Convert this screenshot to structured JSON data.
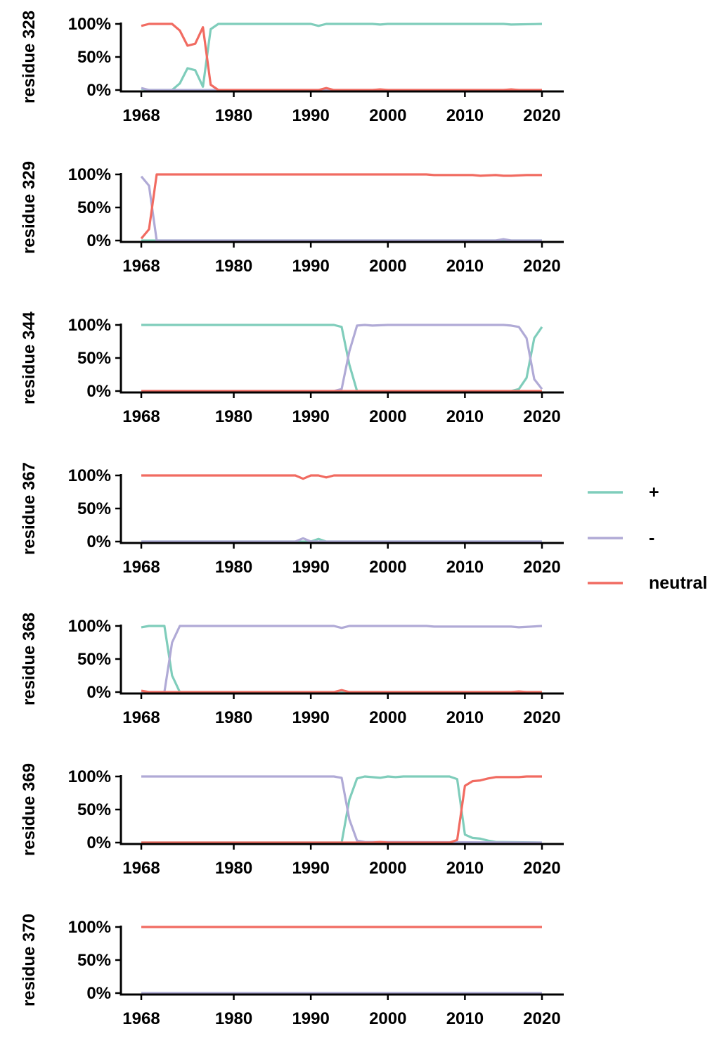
{
  "chart_data": {
    "type": "line",
    "xlim": [
      1965.5,
      2022.5
    ],
    "ylim": [
      0,
      100
    ],
    "x_ticks": [
      1968,
      1980,
      1990,
      2000,
      2010,
      2020
    ],
    "y_ticks": [
      "0%",
      "50%",
      "100%"
    ],
    "grid": false,
    "legend_position": "right",
    "legend": [
      {
        "label": "+",
        "color": "#7fcdbb"
      },
      {
        "label": "-",
        "color": "#b0aad6"
      },
      {
        "label": "neutral",
        "color": "#f16b61"
      }
    ],
    "panels": [
      {
        "ylabel": "residue 328",
        "series": [
          {
            "name": "+",
            "color": "#7fcdbb",
            "points": [
              [
                1968,
                2
              ],
              [
                1969,
                0
              ],
              [
                1970,
                0
              ],
              [
                1971,
                0
              ],
              [
                1972,
                0
              ],
              [
                1973,
                10
              ],
              [
                1974,
                33
              ],
              [
                1975,
                30
              ],
              [
                1976,
                5
              ],
              [
                1977,
                92
              ],
              [
                1978,
                100
              ],
              [
                1980,
                100
              ],
              [
                1990,
                100
              ],
              [
                1991,
                97
              ],
              [
                1992,
                100
              ],
              [
                1998,
                100
              ],
              [
                1999,
                99
              ],
              [
                2000,
                100
              ],
              [
                2015,
                100
              ],
              [
                2016,
                99
              ],
              [
                2020,
                100
              ]
            ]
          },
          {
            "name": "-",
            "color": "#b0aad6",
            "points": [
              [
                1968,
                3
              ],
              [
                1969,
                0
              ],
              [
                1976,
                0
              ],
              [
                1977,
                0
              ],
              [
                2020,
                0
              ]
            ]
          },
          {
            "name": "neutral",
            "color": "#f16b61",
            "points": [
              [
                1968,
                97
              ],
              [
                1969,
                100
              ],
              [
                1972,
                100
              ],
              [
                1973,
                90
              ],
              [
                1974,
                67
              ],
              [
                1975,
                70
              ],
              [
                1976,
                95
              ],
              [
                1977,
                8
              ],
              [
                1978,
                0
              ],
              [
                1991,
                0
              ],
              [
                1992,
                3
              ],
              [
                1993,
                0
              ],
              [
                1998,
                0
              ],
              [
                1999,
                1
              ],
              [
                2000,
                0
              ],
              [
                2015,
                0
              ],
              [
                2016,
                1
              ],
              [
                2017,
                0
              ],
              [
                2020,
                0
              ]
            ]
          }
        ]
      },
      {
        "ylabel": "residue 329",
        "series": [
          {
            "name": "+",
            "color": "#7fcdbb",
            "points": [
              [
                1968,
                0
              ],
              [
                1970,
                0
              ],
              [
                2020,
                0
              ]
            ]
          },
          {
            "name": "-",
            "color": "#b0aad6",
            "points": [
              [
                1968,
                97
              ],
              [
                1969,
                83
              ],
              [
                1970,
                0
              ],
              [
                2014,
                0
              ],
              [
                2015,
                2
              ],
              [
                2016,
                0
              ],
              [
                2020,
                0
              ]
            ]
          },
          {
            "name": "neutral",
            "color": "#f16b61",
            "points": [
              [
                1968,
                3
              ],
              [
                1969,
                17
              ],
              [
                1970,
                100
              ],
              [
                2005,
                100
              ],
              [
                2006,
                99
              ],
              [
                2011,
                99
              ],
              [
                2012,
                98
              ],
              [
                2014,
                99
              ],
              [
                2015,
                98
              ],
              [
                2016,
                98
              ],
              [
                2018,
                99
              ],
              [
                2020,
                99
              ]
            ]
          }
        ]
      },
      {
        "ylabel": "residue 344",
        "series": [
          {
            "name": "+",
            "color": "#7fcdbb",
            "points": [
              [
                1968,
                100
              ],
              [
                1993,
                100
              ],
              [
                1994,
                97
              ],
              [
                1995,
                40
              ],
              [
                1996,
                0
              ],
              [
                2016,
                0
              ],
              [
                2017,
                3
              ],
              [
                2018,
                20
              ],
              [
                2019,
                80
              ],
              [
                2020,
                97
              ]
            ]
          },
          {
            "name": "-",
            "color": "#b0aad6",
            "points": [
              [
                1968,
                0
              ],
              [
                1993,
                0
              ],
              [
                1994,
                3
              ],
              [
                1995,
                60
              ],
              [
                1996,
                99
              ],
              [
                1997,
                100
              ],
              [
                1998,
                99
              ],
              [
                2000,
                100
              ],
              [
                2015,
                100
              ],
              [
                2016,
                99
              ],
              [
                2017,
                97
              ],
              [
                2018,
                80
              ],
              [
                2019,
                18
              ],
              [
                2020,
                3
              ]
            ]
          },
          {
            "name": "neutral",
            "color": "#f16b61",
            "points": [
              [
                1968,
                0
              ],
              [
                2020,
                0
              ]
            ]
          }
        ]
      },
      {
        "ylabel": "residue 367",
        "series": [
          {
            "name": "+",
            "color": "#7fcdbb",
            "points": [
              [
                1968,
                0
              ],
              [
                1990,
                0
              ],
              [
                1991,
                4
              ],
              [
                1992,
                0
              ],
              [
                2020,
                0
              ]
            ]
          },
          {
            "name": "-",
            "color": "#b0aad6",
            "points": [
              [
                1968,
                0
              ],
              [
                1988,
                0
              ],
              [
                1989,
                5
              ],
              [
                1990,
                0
              ],
              [
                2020,
                0
              ]
            ]
          },
          {
            "name": "neutral",
            "color": "#f16b61",
            "points": [
              [
                1968,
                100
              ],
              [
                1988,
                100
              ],
              [
                1989,
                95
              ],
              [
                1990,
                100
              ],
              [
                1991,
                100
              ],
              [
                1992,
                97
              ],
              [
                1993,
                100
              ],
              [
                2020,
                100
              ]
            ]
          }
        ]
      },
      {
        "ylabel": "residue 368",
        "series": [
          {
            "name": "+",
            "color": "#7fcdbb",
            "points": [
              [
                1968,
                98
              ],
              [
                1969,
                100
              ],
              [
                1971,
                100
              ],
              [
                1972,
                25
              ],
              [
                1973,
                0
              ],
              [
                2020,
                0
              ]
            ]
          },
          {
            "name": "-",
            "color": "#b0aad6",
            "points": [
              [
                1968,
                0
              ],
              [
                1971,
                0
              ],
              [
                1972,
                75
              ],
              [
                1973,
                100
              ],
              [
                1993,
                100
              ],
              [
                1994,
                97
              ],
              [
                1995,
                100
              ],
              [
                2005,
                100
              ],
              [
                2006,
                99
              ],
              [
                2016,
                99
              ],
              [
                2017,
                98
              ],
              [
                2020,
                100
              ]
            ]
          },
          {
            "name": "neutral",
            "color": "#f16b61",
            "points": [
              [
                1968,
                2
              ],
              [
                1969,
                0
              ],
              [
                1993,
                0
              ],
              [
                1994,
                3
              ],
              [
                1995,
                0
              ],
              [
                2016,
                0
              ],
              [
                2017,
                1
              ],
              [
                2018,
                0
              ],
              [
                2020,
                0
              ]
            ]
          }
        ]
      },
      {
        "ylabel": "residue 369",
        "series": [
          {
            "name": "+",
            "color": "#7fcdbb",
            "points": [
              [
                1968,
                0
              ],
              [
                1994,
                0
              ],
              [
                1995,
                65
              ],
              [
                1996,
                97
              ],
              [
                1997,
                100
              ],
              [
                1999,
                98
              ],
              [
                2000,
                100
              ],
              [
                2001,
                99
              ],
              [
                2002,
                100
              ],
              [
                2008,
                100
              ],
              [
                2009,
                96
              ],
              [
                2010,
                12
              ],
              [
                2011,
                7
              ],
              [
                2012,
                6
              ],
              [
                2013,
                3
              ],
              [
                2014,
                1
              ],
              [
                2020,
                0
              ]
            ]
          },
          {
            "name": "-",
            "color": "#b0aad6",
            "points": [
              [
                1968,
                100
              ],
              [
                1993,
                100
              ],
              [
                1994,
                98
              ],
              [
                1995,
                35
              ],
              [
                1996,
                3
              ],
              [
                1997,
                1
              ],
              [
                2020,
                0
              ]
            ]
          },
          {
            "name": "neutral",
            "color": "#f16b61",
            "points": [
              [
                1968,
                0
              ],
              [
                1998,
                0
              ],
              [
                1999,
                1
              ],
              [
                2000,
                0
              ],
              [
                2008,
                0
              ],
              [
                2009,
                4
              ],
              [
                2010,
                86
              ],
              [
                2011,
                93
              ],
              [
                2012,
                94
              ],
              [
                2013,
                97
              ],
              [
                2014,
                99
              ],
              [
                2017,
                99
              ],
              [
                2018,
                100
              ],
              [
                2020,
                100
              ]
            ]
          }
        ]
      },
      {
        "ylabel": "residue 370",
        "series": [
          {
            "name": "+",
            "color": "#7fcdbb",
            "points": [
              [
                1968,
                0
              ],
              [
                2020,
                0
              ]
            ]
          },
          {
            "name": "-",
            "color": "#b0aad6",
            "points": [
              [
                1968,
                0
              ],
              [
                2020,
                0
              ]
            ]
          },
          {
            "name": "neutral",
            "color": "#f16b61",
            "points": [
              [
                1968,
                100
              ],
              [
                2020,
                100
              ]
            ]
          }
        ]
      }
    ]
  }
}
